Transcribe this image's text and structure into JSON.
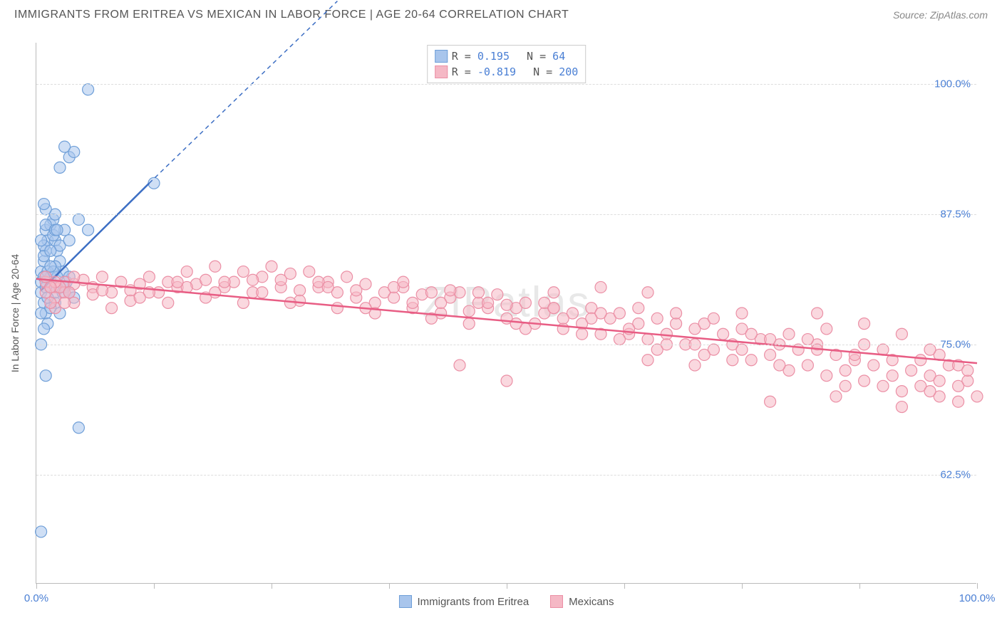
{
  "title": "IMMIGRANTS FROM ERITREA VS MEXICAN IN LABOR FORCE | AGE 20-64 CORRELATION CHART",
  "source": "Source: ZipAtlas.com",
  "watermark": "ZIPatlas",
  "y_axis_label": "In Labor Force | Age 20-64",
  "chart": {
    "type": "scatter",
    "xlim": [
      0,
      100
    ],
    "ylim": [
      52,
      104
    ],
    "x_ticks": [
      0,
      12.5,
      25,
      37.5,
      50,
      62.5,
      75,
      87.5,
      100
    ],
    "x_tick_labels": {
      "0": "0.0%",
      "100": "100.0%"
    },
    "y_grid": [
      62.5,
      75.0,
      87.5,
      100.0
    ],
    "y_tick_labels": {
      "62.5": "62.5%",
      "75.0": "75.0%",
      "87.5": "87.5%",
      "100.0": "100.0%"
    },
    "background_color": "#ffffff",
    "grid_color": "#dddddd",
    "axis_color": "#bbbbbb",
    "tick_label_color": "#4a7fd4",
    "marker_radius": 8,
    "marker_opacity": 0.55,
    "line_width": 2.5
  },
  "series": [
    {
      "name": "Immigrants from Eritrea",
      "fill": "#a8c5ec",
      "stroke": "#6f9fd8",
      "line_color": "#3d6fc4",
      "R": "0.195",
      "N": "64",
      "trend": {
        "x1": 0.5,
        "y1": 80.2,
        "x2": 12,
        "y2": 90.5,
        "dash_x2": 32,
        "dash_y2": 108
      },
      "points": [
        [
          0.5,
          81
        ],
        [
          0.5,
          82
        ],
        [
          0.8,
          83
        ],
        [
          1.0,
          84
        ],
        [
          1.2,
          85
        ],
        [
          1.0,
          86
        ],
        [
          1.5,
          86.5
        ],
        [
          1.8,
          87
        ],
        [
          2.0,
          87.5
        ],
        [
          1.0,
          88
        ],
        [
          0.8,
          88.5
        ],
        [
          2.0,
          85
        ],
        [
          2.2,
          84
        ],
        [
          2.5,
          83
        ],
        [
          2.8,
          82
        ],
        [
          0.5,
          80
        ],
        [
          0.8,
          79
        ],
        [
          1.0,
          78
        ],
        [
          1.2,
          77
        ],
        [
          3.0,
          80.5
        ],
        [
          3.2,
          81
        ],
        [
          3.5,
          81.5
        ],
        [
          2.0,
          79
        ],
        [
          1.5,
          78.5
        ],
        [
          0.8,
          76.5
        ],
        [
          0.5,
          75
        ],
        [
          3.5,
          93
        ],
        [
          4.0,
          93.5
        ],
        [
          5.5,
          99.5
        ],
        [
          3.0,
          94
        ],
        [
          2.5,
          92
        ],
        [
          4.5,
          87
        ],
        [
          5.5,
          86
        ],
        [
          1.0,
          72
        ],
        [
          4.5,
          67
        ],
        [
          0.5,
          57
        ],
        [
          1.5,
          81.5
        ],
        [
          2.0,
          82.5
        ],
        [
          2.5,
          84.5
        ],
        [
          1.8,
          85.5
        ],
        [
          1.0,
          86.5
        ],
        [
          0.8,
          84.5
        ],
        [
          3.0,
          86
        ],
        [
          3.5,
          85
        ],
        [
          12.5,
          90.5
        ],
        [
          2.0,
          80
        ],
        [
          1.5,
          80.5
        ],
        [
          2.2,
          81.5
        ],
        [
          2.8,
          80
        ],
        [
          1.2,
          82
        ],
        [
          0.8,
          83.5
        ],
        [
          1.5,
          84
        ],
        [
          2.0,
          86
        ],
        [
          1.8,
          82
        ],
        [
          1.0,
          80.5
        ],
        [
          3.5,
          80
        ],
        [
          4.0,
          79.5
        ],
        [
          0.5,
          78
        ],
        [
          1.2,
          79.5
        ],
        [
          2.5,
          78
        ],
        [
          0.8,
          81.5
        ],
        [
          1.5,
          82.5
        ],
        [
          2.2,
          86
        ],
        [
          0.5,
          85
        ]
      ]
    },
    {
      "name": "Mexicans",
      "fill": "#f5b8c5",
      "stroke": "#eb8fa5",
      "line_color": "#e85d84",
      "R": "-0.819",
      "N": "200",
      "trend": {
        "x1": 0,
        "y1": 81.3,
        "x2": 100,
        "y2": 73.2
      },
      "points": [
        [
          1,
          81
        ],
        [
          2,
          80.5
        ],
        [
          3,
          81
        ],
        [
          4,
          80.8
        ],
        [
          5,
          81.2
        ],
        [
          6,
          80.5
        ],
        [
          7,
          81.5
        ],
        [
          8,
          80
        ],
        [
          9,
          81
        ],
        [
          10,
          80.2
        ],
        [
          11,
          80.8
        ],
        [
          12,
          81.5
        ],
        [
          13,
          80
        ],
        [
          14,
          81
        ],
        [
          15,
          80.5
        ],
        [
          16,
          82
        ],
        [
          17,
          80.8
        ],
        [
          18,
          81.2
        ],
        [
          19,
          82.5
        ],
        [
          20,
          80.5
        ],
        [
          21,
          81
        ],
        [
          22,
          82
        ],
        [
          23,
          80
        ],
        [
          24,
          81.5
        ],
        [
          25,
          82.5
        ],
        [
          26,
          80.5
        ],
        [
          27,
          81.8
        ],
        [
          28,
          80.2
        ],
        [
          29,
          82
        ],
        [
          30,
          80.5
        ],
        [
          31,
          81
        ],
        [
          32,
          80
        ],
        [
          33,
          81.5
        ],
        [
          34,
          79.5
        ],
        [
          35,
          80.8
        ],
        [
          36,
          79
        ],
        [
          37,
          80
        ],
        [
          38,
          79.5
        ],
        [
          39,
          80.5
        ],
        [
          40,
          78.5
        ],
        [
          41,
          79.8
        ],
        [
          42,
          80
        ],
        [
          43,
          78
        ],
        [
          44,
          79.5
        ],
        [
          45,
          80
        ],
        [
          46,
          78.2
        ],
        [
          47,
          79
        ],
        [
          48,
          78.5
        ],
        [
          49,
          79.8
        ],
        [
          50,
          77.5
        ],
        [
          51,
          78.5
        ],
        [
          52,
          79
        ],
        [
          53,
          77
        ],
        [
          54,
          78
        ],
        [
          55,
          78.5
        ],
        [
          56,
          76.5
        ],
        [
          57,
          78
        ],
        [
          58,
          77
        ],
        [
          59,
          78.5
        ],
        [
          60,
          76
        ],
        [
          61,
          77.5
        ],
        [
          62,
          78
        ],
        [
          63,
          76
        ],
        [
          64,
          77
        ],
        [
          65,
          75.5
        ],
        [
          66,
          77.5
        ],
        [
          67,
          76
        ],
        [
          68,
          77
        ],
        [
          69,
          75
        ],
        [
          70,
          76.5
        ],
        [
          71,
          77
        ],
        [
          72,
          74.5
        ],
        [
          73,
          76
        ],
        [
          74,
          75
        ],
        [
          75,
          76.5
        ],
        [
          76,
          73.5
        ],
        [
          77,
          75.5
        ],
        [
          78,
          74
        ],
        [
          79,
          75
        ],
        [
          80,
          72.5
        ],
        [
          81,
          74.5
        ],
        [
          82,
          73
        ],
        [
          83,
          75
        ],
        [
          84,
          72
        ],
        [
          85,
          74
        ],
        [
          86,
          72.5
        ],
        [
          87,
          73.5
        ],
        [
          88,
          71.5
        ],
        [
          89,
          73
        ],
        [
          90,
          71
        ],
        [
          91,
          73.5
        ],
        [
          92,
          70.5
        ],
        [
          93,
          72.5
        ],
        [
          94,
          71
        ],
        [
          95,
          72
        ],
        [
          96,
          70
        ],
        [
          97,
          73
        ],
        [
          98,
          69.5
        ],
        [
          99,
          71.5
        ],
        [
          100,
          70
        ],
        [
          2,
          79.5
        ],
        [
          4,
          79
        ],
        [
          6,
          79.8
        ],
        [
          8,
          78.5
        ],
        [
          10,
          79.2
        ],
        [
          12,
          80
        ],
        [
          14,
          79
        ],
        [
          16,
          80.5
        ],
        [
          18,
          79.5
        ],
        [
          20,
          81
        ],
        [
          22,
          79
        ],
        [
          24,
          80
        ],
        [
          26,
          81.2
        ],
        [
          28,
          79.2
        ],
        [
          30,
          81
        ],
        [
          32,
          78.5
        ],
        [
          34,
          80.2
        ],
        [
          36,
          78
        ],
        [
          38,
          80.5
        ],
        [
          40,
          79
        ],
        [
          42,
          77.5
        ],
        [
          44,
          80.2
        ],
        [
          46,
          77
        ],
        [
          48,
          79
        ],
        [
          50,
          78.8
        ],
        [
          52,
          76.5
        ],
        [
          54,
          79
        ],
        [
          56,
          77.5
        ],
        [
          58,
          76
        ],
        [
          60,
          78
        ],
        [
          62,
          75.5
        ],
        [
          64,
          78.5
        ],
        [
          66,
          74.5
        ],
        [
          68,
          78
        ],
        [
          70,
          75
        ],
        [
          72,
          77.5
        ],
        [
          74,
          73.5
        ],
        [
          76,
          76
        ],
        [
          78,
          75.5
        ],
        [
          80,
          76
        ],
        [
          82,
          75.5
        ],
        [
          84,
          76.5
        ],
        [
          86,
          71
        ],
        [
          88,
          75
        ],
        [
          90,
          74.5
        ],
        [
          92,
          69
        ],
        [
          94,
          73.5
        ],
        [
          96,
          74
        ],
        [
          98,
          73
        ],
        [
          99,
          72.5
        ],
        [
          50,
          71.5
        ],
        [
          55,
          80
        ],
        [
          60,
          80.5
        ],
        [
          65,
          73.5
        ],
        [
          70,
          73
        ],
        [
          78,
          69.5
        ],
        [
          83,
          78
        ],
        [
          88,
          77
        ],
        [
          92,
          76
        ],
        [
          96,
          71.5
        ],
        [
          3,
          80
        ],
        [
          7,
          80.2
        ],
        [
          11,
          79.5
        ],
        [
          15,
          81
        ],
        [
          19,
          80
        ],
        [
          23,
          81.2
        ],
        [
          27,
          79
        ],
        [
          31,
          80.5
        ],
        [
          35,
          78.5
        ],
        [
          39,
          81
        ],
        [
          43,
          79
        ],
        [
          47,
          80
        ],
        [
          51,
          77
        ],
        [
          55,
          78.5
        ],
        [
          59,
          77.5
        ],
        [
          63,
          76.5
        ],
        [
          67,
          75
        ],
        [
          71,
          74
        ],
        [
          75,
          74.5
        ],
        [
          79,
          73
        ],
        [
          83,
          74.5
        ],
        [
          87,
          74
        ],
        [
          91,
          72
        ],
        [
          95,
          70.5
        ],
        [
          98,
          71
        ],
        [
          45,
          73
        ],
        [
          65,
          80
        ],
        [
          75,
          78
        ],
        [
          85,
          70
        ],
        [
          95,
          74.5
        ],
        [
          1,
          80
        ],
        [
          2,
          78.5
        ],
        [
          1.5,
          79
        ],
        [
          2.5,
          80.5
        ],
        [
          1,
          81.5
        ],
        [
          3,
          79
        ],
        [
          2,
          81
        ],
        [
          4,
          81.5
        ],
        [
          1.5,
          80.5
        ],
        [
          3.5,
          80
        ]
      ]
    }
  ],
  "legend_bottom": [
    {
      "label": "Immigrants from Eritrea",
      "fill": "#a8c5ec",
      "stroke": "#6f9fd8"
    },
    {
      "label": "Mexicans",
      "fill": "#f5b8c5",
      "stroke": "#eb8fa5"
    }
  ]
}
